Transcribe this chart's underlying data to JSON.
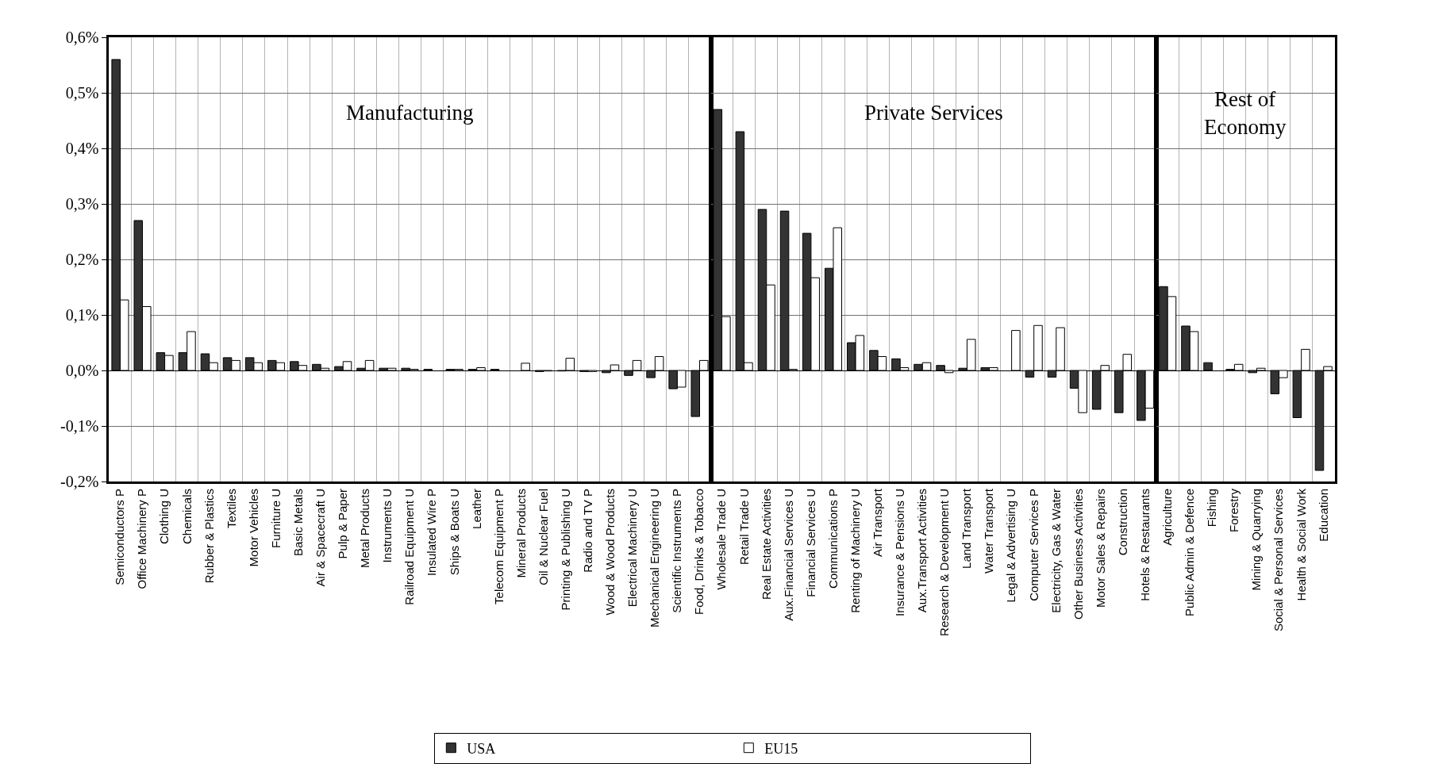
{
  "chart_data": [
    {
      "type": "bar",
      "annotations": [
        "Manufacturing"
      ],
      "legend": "bottom",
      "grid": true,
      "categories": [
        "Semiconductors P",
        "Office Machinery P",
        "Clothing U",
        "Chemicals",
        "Rubber & Plastics",
        "Textiles",
        "Motor Vehicles",
        "Furniture U",
        "Basic Metals",
        "Air & Spacecraft U",
        "Pulp & Paper",
        "Metal Products",
        "Instruments U",
        "Railroad Equipment U",
        "Insulated Wire P",
        "Ships & Boats U",
        "Leather",
        "Telecom Equipment P",
        "Mineral Products",
        "Oil & Nuclear Fuel",
        "Printing & Publishing U",
        "Radio and TV P",
        "Wood & Wood Products",
        "Electrical Machinery U",
        "Mechanical Engineering U",
        "Scientific Instruments P",
        "Food, Drinks & Tobacco"
      ],
      "series": [
        {
          "name": "USA",
          "color": "#333333",
          "values": [
            0.56,
            0.27,
            0.032,
            0.032,
            0.03,
            0.023,
            0.023,
            0.018,
            0.016,
            0.011,
            0.007,
            0.004,
            0.004,
            0.004,
            0.002,
            0.002,
            0.002,
            0.002,
            0,
            -0.002,
            -0.001,
            -0.002,
            -0.004,
            -0.009,
            -0.013,
            -0.033,
            -0.083
          ]
        },
        {
          "name": "EU15",
          "color": "#ffffff",
          "values": [
            0.127,
            0.115,
            0.027,
            0.07,
            0.014,
            0.018,
            0.014,
            0.014,
            0.009,
            0.004,
            0.016,
            0.018,
            0.004,
            0.002,
            0,
            0.002,
            0.005,
            0,
            0.013,
            -0.001,
            0.022,
            -0.002,
            0.01,
            0.018,
            0.025,
            -0.03,
            0.018
          ]
        }
      ],
      "ylim": [
        -0.2,
        0.6
      ],
      "yticks": [
        {
          "value": -0.2,
          "label": "-0,2%"
        },
        {
          "value": -0.1,
          "label": "-0,1%"
        },
        {
          "value": 0,
          "label": "0,0%"
        },
        {
          "value": 0.1,
          "label": "0,1%"
        },
        {
          "value": 0.2,
          "label": "0,2%"
        },
        {
          "value": 0.3,
          "label": "0,3%"
        },
        {
          "value": 0.4,
          "label": "0,4%"
        },
        {
          "value": 0.5,
          "label": "0,5%"
        },
        {
          "value": 0.6,
          "label": "0,6%"
        }
      ]
    },
    {
      "type": "bar",
      "annotations": [
        "Private Services"
      ],
      "grid": true,
      "tick_labels": "x",
      "categories": [
        "Wholesale Trade U",
        "Retail Trade U",
        "Real Estate Activities",
        "Aux.Financial Services U",
        "Financial Services U",
        "Communications P",
        "Renting of Machinery U",
        "Air Transport",
        "Insurance & Pensions U",
        "Aux.Transport Activities",
        "Research & Development U",
        "Land Transport",
        "Water Transport",
        "Legal & Advertising U",
        "Computer Services P",
        "Electricity, Gas & Water",
        "Other Business Activities",
        "Motor Sales & Repairs",
        "Construction",
        "Hotels & Restaurants"
      ],
      "series": [
        {
          "color": "#333333",
          "values": [
            0.47,
            0.43,
            0.29,
            0.287,
            0.247,
            0.184,
            0.05,
            0.036,
            0.021,
            0.011,
            0.009,
            0.004,
            0.005,
            0,
            -0.012,
            -0.012,
            -0.032,
            -0.07,
            -0.076,
            -0.09
          ]
        },
        {
          "color": "#ffffff",
          "values": [
            0.097,
            0.014,
            0.154,
            0.002,
            0.167,
            0.257,
            0.063,
            0.025,
            0.005,
            0.014,
            -0.004,
            0.056,
            0.005,
            0.072,
            0.081,
            0.077,
            -0.076,
            0.009,
            0.029,
            -0.068
          ]
        }
      ],
      "ylim": [
        -0.2,
        0.6
      ],
      "yticks": [
        {
          "value": -0.2,
          "label": null
        },
        {
          "value": -0.1,
          "label": null
        },
        {
          "value": 0,
          "label": null
        },
        {
          "value": 0.1,
          "label": null
        },
        {
          "value": 0.2,
          "label": null
        },
        {
          "value": 0.3,
          "label": null
        },
        {
          "value": 0.4,
          "label": null
        },
        {
          "value": 0.5,
          "label": null
        },
        {
          "value": 0.6,
          "label": null
        }
      ]
    },
    {
      "type": "bar",
      "annotations": [
        "Rest of\nEconomy"
      ],
      "grid": true,
      "tick_labels": "x",
      "categories": [
        "Agriculture",
        "Public Admin & Defence",
        "Fishing",
        "Forestry",
        "Mining & Quarrying",
        "Social & Personal Services",
        "Health & Social Work",
        "Education"
      ],
      "series": [
        {
          "color": "#333333",
          "values": [
            0.151,
            0.08,
            0.014,
            0.002,
            -0.004,
            -0.042,
            -0.085,
            -0.18
          ]
        },
        {
          "color": "#ffffff",
          "values": [
            0.133,
            0.07,
            0,
            0.011,
            0.004,
            -0.013,
            0.038,
            0.007
          ]
        }
      ],
      "ylim": [
        -0.2,
        0.6
      ],
      "yticks": [
        {
          "value": -0.2,
          "label": null
        },
        {
          "value": -0.1,
          "label": null
        },
        {
          "value": 0,
          "label": null
        },
        {
          "value": 0.1,
          "label": null
        },
        {
          "value": 0.2,
          "label": null
        },
        {
          "value": 0.3,
          "label": null
        },
        {
          "value": 0.4,
          "label": null
        },
        {
          "value": 0.5,
          "label": null
        },
        {
          "value": 0.6,
          "label": null
        }
      ]
    }
  ]
}
